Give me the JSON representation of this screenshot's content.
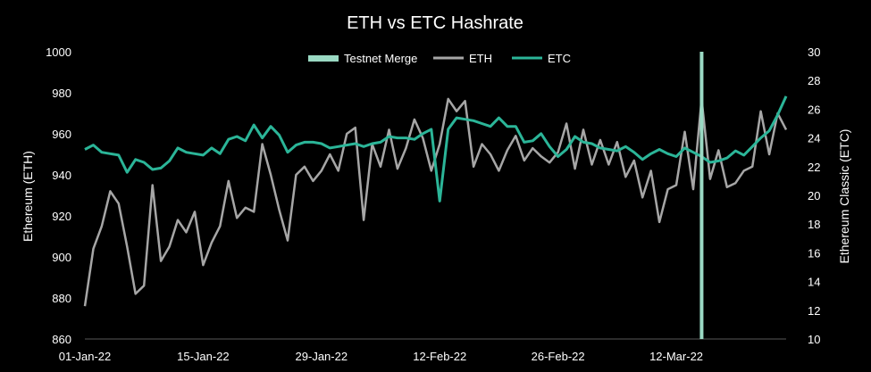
{
  "chart_data": {
    "type": "line",
    "title": "ETH vs ETC Hashrate",
    "ylabel": "Ethereum (ETH)",
    "y2label": "Ethereum Classic (ETC)",
    "ylim": [
      860,
      1000
    ],
    "y2lim": [
      10,
      30
    ],
    "yticks": [
      "1000",
      "980",
      "960",
      "940",
      "920",
      "900",
      "880",
      "860"
    ],
    "y2ticks": [
      "30",
      "28",
      "26",
      "24",
      "22",
      "20",
      "18",
      "16",
      "14",
      "12",
      "10"
    ],
    "x_range": [
      "01-Jan-22",
      "25-Mar-22"
    ],
    "xticks": [
      "01-Jan-22",
      "15-Jan-22",
      "29-Jan-22",
      "12-Feb-22",
      "26-Feb-22",
      "12-Mar-22"
    ],
    "legend_position": "top-center",
    "grid": false,
    "colors": {
      "background": "#000000",
      "text": "#ffffff",
      "eth": "#a6a6a6",
      "etc": "#2bb598",
      "merge": "#9ad9c3"
    },
    "series": [
      {
        "name": "ETH",
        "axis": "left",
        "x": [
          "2022-01-01",
          "2022-01-02",
          "2022-01-03",
          "2022-01-04",
          "2022-01-05",
          "2022-01-06",
          "2022-01-07",
          "2022-01-08",
          "2022-01-09",
          "2022-01-10",
          "2022-01-11",
          "2022-01-12",
          "2022-01-13",
          "2022-01-14",
          "2022-01-15",
          "2022-01-16",
          "2022-01-17",
          "2022-01-18",
          "2022-01-19",
          "2022-01-20",
          "2022-01-21",
          "2022-01-22",
          "2022-01-23",
          "2022-01-24",
          "2022-01-25",
          "2022-01-26",
          "2022-01-27",
          "2022-01-28",
          "2022-01-29",
          "2022-01-30",
          "2022-01-31",
          "2022-02-01",
          "2022-02-02",
          "2022-02-03",
          "2022-02-04",
          "2022-02-05",
          "2022-02-06",
          "2022-02-07",
          "2022-02-08",
          "2022-02-09",
          "2022-02-10",
          "2022-02-11",
          "2022-02-12",
          "2022-02-13",
          "2022-02-14",
          "2022-02-15",
          "2022-02-16",
          "2022-02-17",
          "2022-02-18",
          "2022-02-19",
          "2022-02-20",
          "2022-02-21",
          "2022-02-22",
          "2022-02-23",
          "2022-02-24",
          "2022-02-25",
          "2022-02-26",
          "2022-02-27",
          "2022-02-28",
          "2022-03-01",
          "2022-03-02",
          "2022-03-03",
          "2022-03-04",
          "2022-03-05",
          "2022-03-06",
          "2022-03-07",
          "2022-03-08",
          "2022-03-09",
          "2022-03-10",
          "2022-03-11",
          "2022-03-12",
          "2022-03-13",
          "2022-03-14",
          "2022-03-15",
          "2022-03-16",
          "2022-03-17",
          "2022-03-18",
          "2022-03-19",
          "2022-03-20",
          "2022-03-21",
          "2022-03-22",
          "2022-03-23",
          "2022-03-24",
          "2022-03-25"
        ],
        "values": [
          876,
          904,
          915,
          932,
          926,
          905,
          882,
          886,
          935,
          898,
          905,
          918,
          912,
          922,
          896,
          907,
          915,
          937,
          919,
          924,
          922,
          955,
          940,
          923,
          908,
          940,
          944,
          937,
          942,
          950,
          942,
          960,
          963,
          918,
          955,
          944,
          962,
          943,
          953,
          967,
          958,
          942,
          955,
          977,
          971,
          976,
          944,
          955,
          950,
          942,
          952,
          959,
          947,
          953,
          949,
          946,
          951,
          965,
          943,
          962,
          945,
          957,
          945,
          956,
          939,
          947,
          929,
          942,
          917,
          933,
          935,
          961,
          933,
          977,
          938,
          952,
          934,
          936,
          942,
          944,
          971,
          950,
          970,
          962
        ]
      },
      {
        "name": "ETC",
        "axis": "right",
        "x": [
          "2022-01-01",
          "2022-01-02",
          "2022-01-03",
          "2022-01-04",
          "2022-01-05",
          "2022-01-06",
          "2022-01-07",
          "2022-01-08",
          "2022-01-09",
          "2022-01-10",
          "2022-01-11",
          "2022-01-12",
          "2022-01-13",
          "2022-01-14",
          "2022-01-15",
          "2022-01-16",
          "2022-01-17",
          "2022-01-18",
          "2022-01-19",
          "2022-01-20",
          "2022-01-21",
          "2022-01-22",
          "2022-01-23",
          "2022-01-24",
          "2022-01-25",
          "2022-01-26",
          "2022-01-27",
          "2022-01-28",
          "2022-01-29",
          "2022-01-30",
          "2022-01-31",
          "2022-02-01",
          "2022-02-02",
          "2022-02-03",
          "2022-02-04",
          "2022-02-05",
          "2022-02-06",
          "2022-02-07",
          "2022-02-08",
          "2022-02-09",
          "2022-02-10",
          "2022-02-11",
          "2022-02-12",
          "2022-02-13",
          "2022-02-14",
          "2022-02-15",
          "2022-02-16",
          "2022-02-17",
          "2022-02-18",
          "2022-02-19",
          "2022-02-20",
          "2022-02-21",
          "2022-02-22",
          "2022-02-23",
          "2022-02-24",
          "2022-02-25",
          "2022-02-26",
          "2022-02-27",
          "2022-02-28",
          "2022-03-01",
          "2022-03-02",
          "2022-03-03",
          "2022-03-04",
          "2022-03-05",
          "2022-03-06",
          "2022-03-07",
          "2022-03-08",
          "2022-03-09",
          "2022-03-10",
          "2022-03-11",
          "2022-03-12",
          "2022-03-13",
          "2022-03-14",
          "2022-03-15",
          "2022-03-16",
          "2022-03-17",
          "2022-03-18",
          "2022-03-19",
          "2022-03-20",
          "2022-03-21",
          "2022-03-22",
          "2022-03-23",
          "2022-03-24",
          "2022-03-25"
        ],
        "values": [
          23.2,
          23.5,
          23.0,
          22.9,
          22.8,
          21.6,
          22.5,
          22.3,
          21.8,
          21.9,
          22.4,
          23.3,
          23.0,
          22.9,
          22.8,
          23.3,
          22.9,
          23.9,
          24.1,
          23.8,
          24.9,
          24.0,
          24.8,
          24.2,
          23.0,
          23.5,
          23.7,
          23.7,
          23.6,
          23.3,
          23.4,
          23.5,
          23.6,
          23.4,
          23.6,
          23.7,
          24.1,
          24.0,
          24.0,
          23.9,
          24.3,
          24.6,
          19.6,
          24.6,
          25.4,
          25.3,
          25.2,
          25.0,
          24.8,
          25.4,
          24.8,
          24.8,
          23.7,
          23.8,
          24.3,
          23.4,
          22.7,
          23.2,
          24.1,
          23.7,
          23.6,
          23.3,
          23.2,
          23.1,
          23.4,
          23.0,
          22.5,
          22.9,
          23.2,
          22.9,
          22.7,
          23.3,
          23.0,
          22.7,
          22.3,
          22.4,
          22.6,
          23.1,
          22.8,
          23.4,
          24.0,
          24.5,
          25.6,
          26.9
        ]
      }
    ],
    "markers": [
      {
        "name": "Testnet Merge",
        "type": "vertical-line",
        "x": "2022-03-15"
      }
    ]
  }
}
